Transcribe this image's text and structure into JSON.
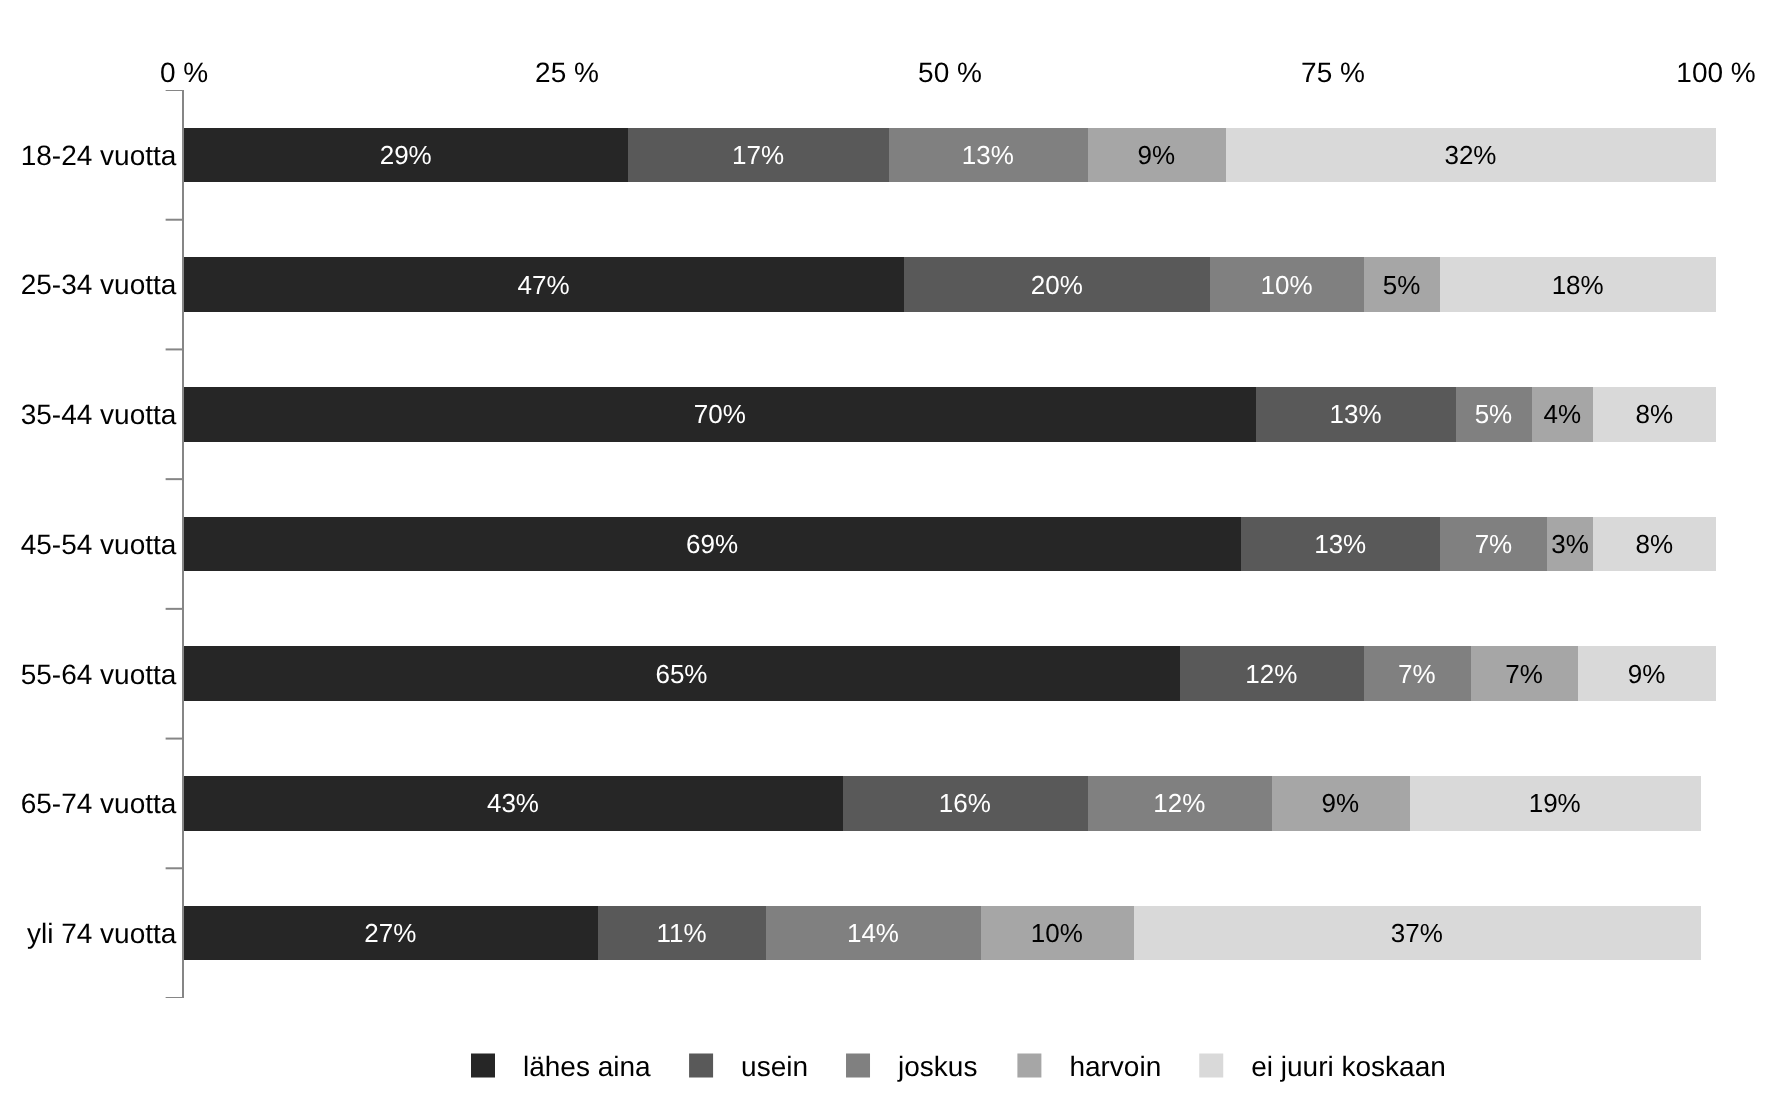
{
  "chart_data": {
    "type": "bar",
    "orientation": "horizontal",
    "stacked": true,
    "categories": [
      "18-24 vuotta",
      "25-34 vuotta",
      "35-44 vuotta",
      "45-54 vuotta",
      "55-64 vuotta",
      "65-74 vuotta",
      "yli 74 vuotta"
    ],
    "series": [
      {
        "name": "lähes aina",
        "color": "#262626",
        "values": [
          29,
          47,
          70,
          69,
          65,
          43,
          27
        ],
        "value_labels": [
          "29%",
          "47%",
          "70%",
          "69%",
          "65%",
          "43%",
          "27%"
        ]
      },
      {
        "name": "usein",
        "color": "#595959",
        "values": [
          17,
          20,
          13,
          13,
          12,
          16,
          11
        ],
        "value_labels": [
          "17%",
          "20%",
          "13%",
          "13%",
          "12%",
          "16%",
          "11%"
        ]
      },
      {
        "name": "joskus",
        "color": "#808080",
        "values": [
          13,
          10,
          5,
          7,
          7,
          12,
          14
        ],
        "value_labels": [
          "13%",
          "10%",
          "5%",
          "7%",
          "7%",
          "12%",
          "14%"
        ]
      },
      {
        "name": "harvoin",
        "color": "#a6a6a6",
        "values": [
          9,
          5,
          4,
          3,
          7,
          9,
          10
        ],
        "value_labels": [
          "9%",
          "5%",
          "4%",
          "3%",
          "7%",
          "9%",
          "10%"
        ]
      },
      {
        "name": "ei juuri koskaan",
        "color": "#d9d9d9",
        "values": [
          32,
          18,
          8,
          8,
          9,
          19,
          37
        ],
        "value_labels": [
          "32%",
          "18%",
          "8%",
          "8%",
          "9%",
          "19%",
          "37%"
        ]
      }
    ],
    "xlim": [
      0,
      100
    ],
    "xticks": [
      {
        "value": 0,
        "label": "0 %"
      },
      {
        "value": 25,
        "label": "25 %"
      },
      {
        "value": 50,
        "label": "50 %"
      },
      {
        "value": 75,
        "label": "75 %"
      },
      {
        "value": 100,
        "label": "100 %"
      }
    ],
    "legend": "bottom"
  }
}
